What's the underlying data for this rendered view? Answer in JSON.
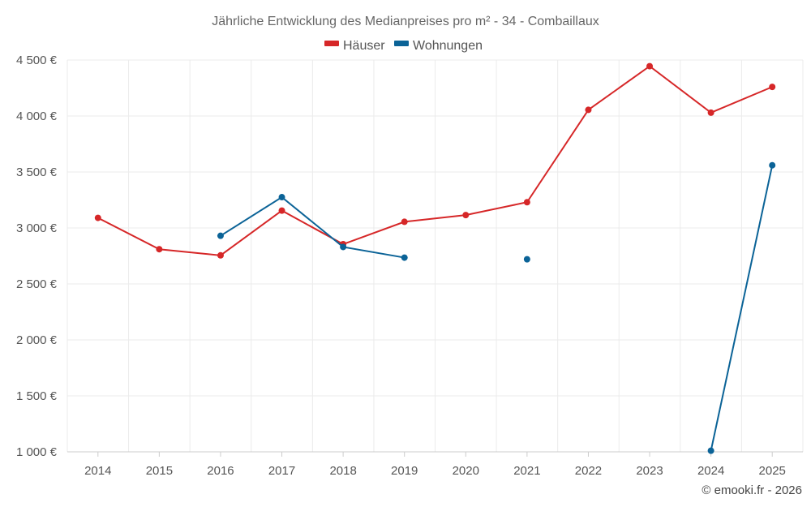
{
  "chart_data": {
    "type": "line",
    "title": "Jährliche Entwicklung des Medianpreises pro m² - 34 - Combaillaux",
    "categories": [
      "2014",
      "2015",
      "2016",
      "2017",
      "2018",
      "2019",
      "2020",
      "2021",
      "2022",
      "2023",
      "2024",
      "2025"
    ],
    "ylim": [
      1000,
      4500
    ],
    "yticks": [
      1000,
      1500,
      2000,
      2500,
      3000,
      3500,
      4000,
      4500
    ],
    "ytick_labels": [
      "1 000 €",
      "1 500 €",
      "2 000 €",
      "2 500 €",
      "3 000 €",
      "3 500 €",
      "4 000 €",
      "4 500 €"
    ],
    "grid": true,
    "legend_position": "top-center",
    "series": [
      {
        "name": "Häuser",
        "color": "#d62728",
        "values": [
          3090,
          2810,
          2755,
          3155,
          2855,
          3055,
          3115,
          3230,
          4055,
          4445,
          4030,
          4260
        ]
      },
      {
        "name": "Wohnungen",
        "color": "#0b6397",
        "values": [
          null,
          null,
          2930,
          3275,
          2830,
          2735,
          null,
          2720,
          null,
          null,
          1010,
          3560
        ]
      }
    ]
  },
  "credit": "© emooki.fr - 2026"
}
